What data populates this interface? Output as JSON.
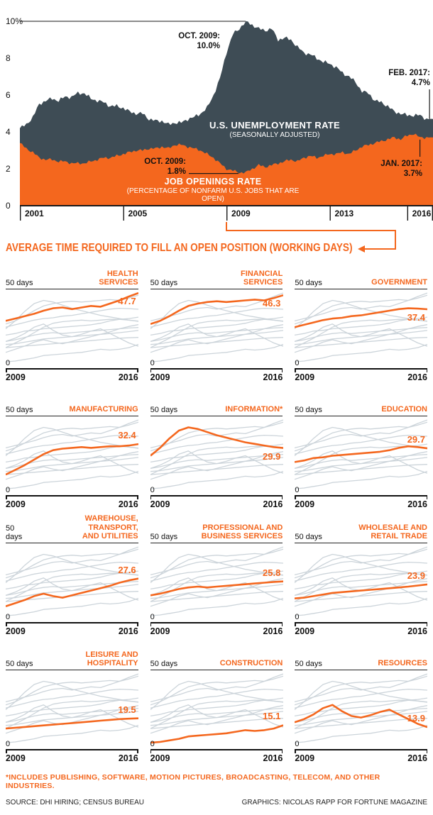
{
  "colors": {
    "orange": "#f4671e",
    "slate": "#3e4c55",
    "gray_line": "#ccd4da",
    "axis": "#1a1a1a"
  },
  "chart_data": [
    {
      "type": "area",
      "x_start": 2001,
      "x_end": 2017,
      "x_step": 0.25,
      "ylim": [
        0,
        10
      ],
      "grid": false,
      "y_ticks": [
        {
          "value": 10,
          "label": "10%"
        },
        {
          "value": 8,
          "label": "8"
        },
        {
          "value": 6,
          "label": "6"
        },
        {
          "value": 4,
          "label": "4"
        },
        {
          "value": 2,
          "label": "2"
        },
        {
          "value": 0,
          "label": "0"
        }
      ],
      "x_ticks": [
        {
          "value": 2001,
          "label": "2001"
        },
        {
          "value": 2005,
          "label": "2005"
        },
        {
          "value": 2009,
          "label": "2009"
        },
        {
          "value": 2013,
          "label": "2013"
        },
        {
          "value": 2016,
          "label": "2016"
        }
      ],
      "series": [
        {
          "name": "U.S. UNEMPLOYMENT RATE",
          "subtitle": "(SEASONALLY ADJUSTED)",
          "color": "slate",
          "values": [
            4.2,
            4.4,
            4.8,
            5.5,
            5.7,
            5.8,
            5.7,
            5.9,
            5.9,
            6.1,
            6.1,
            5.8,
            5.7,
            5.6,
            5.4,
            5.4,
            5.3,
            5.1,
            5.0,
            5.0,
            4.7,
            4.6,
            4.6,
            4.4,
            4.5,
            4.5,
            4.7,
            4.8,
            5.0,
            5.3,
            6.0,
            6.9,
            8.3,
            9.3,
            9.6,
            10.0,
            9.8,
            9.6,
            9.5,
            9.6,
            9.0,
            9.1,
            9.0,
            8.6,
            8.3,
            8.2,
            8.0,
            7.8,
            7.7,
            7.5,
            7.2,
            7.0,
            6.7,
            6.2,
            6.1,
            5.7,
            5.6,
            5.4,
            5.1,
            5.0,
            4.9,
            4.9,
            4.9,
            4.7,
            4.7
          ]
        },
        {
          "name": "JOB OPENINGS RATE",
          "subtitle": "(PERCENTAGE OF NONFARM U.S. JOBS THAT ARE OPEN)",
          "color": "orange",
          "values": [
            3.4,
            3.1,
            2.9,
            2.6,
            2.5,
            2.5,
            2.4,
            2.4,
            2.3,
            2.3,
            2.3,
            2.4,
            2.5,
            2.6,
            2.6,
            2.7,
            2.8,
            2.9,
            3.0,
            3.0,
            3.1,
            3.1,
            3.2,
            3.1,
            3.3,
            3.3,
            3.2,
            3.1,
            3.0,
            2.8,
            2.6,
            2.3,
            2.0,
            1.9,
            1.8,
            1.8,
            2.0,
            2.2,
            2.1,
            2.2,
            2.3,
            2.4,
            2.5,
            2.4,
            2.6,
            2.7,
            2.6,
            2.7,
            2.8,
            2.8,
            2.9,
            2.8,
            3.0,
            3.2,
            3.3,
            3.4,
            3.5,
            3.6,
            3.7,
            3.6,
            3.8,
            3.9,
            3.7,
            3.7,
            3.7
          ]
        }
      ],
      "annotations": {
        "peak": "OCT. 2009:\n10.0%",
        "end_unemployment": "FEB. 2017:\n4.7%",
        "low": "OCT. 2009:\n1.8%",
        "end_openings": "JAN. 2017:\n3.7%"
      }
    },
    {
      "type": "line",
      "title": "AVERAGE TIME REQUIRED TO FILL AN OPEN POSITION (WORKING DAYS)",
      "ylim": [
        0,
        50
      ],
      "x_start": 2009,
      "x_end": 2016,
      "y_top_label": "50 days",
      "y_bottom_label": "0",
      "x_left_label": "2009",
      "x_right_label": "2016",
      "panels": [
        {
          "title": "HEALTH\nSERVICES",
          "value_label": "47.7",
          "label_side": "below",
          "values": [
            30,
            31.5,
            33,
            34.5,
            36.5,
            38,
            38.5,
            37.5,
            38.5,
            39.5,
            39,
            41,
            43,
            45.5,
            47.7
          ]
        },
        {
          "title": "FINANCIAL\nSERVICES",
          "value_label": "46.3",
          "label_side": "below",
          "values": [
            28,
            30,
            33,
            36.5,
            39.5,
            41,
            42,
            42.5,
            42,
            42.5,
            43,
            43.5,
            43,
            44.5,
            46.3
          ]
        },
        {
          "title": "GOVERNMENT",
          "value_label": "37.4",
          "label_side": "below",
          "values": [
            26,
            27.5,
            29,
            30.5,
            31.5,
            32,
            33,
            33.5,
            34.5,
            35.5,
            36.5,
            37.5,
            38,
            37.8,
            37.4
          ]
        },
        {
          "title": "MANUFACTURING",
          "value_label": "32.4",
          "label_side": "above",
          "values": [
            13,
            16,
            19,
            22.5,
            26,
            28.5,
            29.5,
            30,
            30.5,
            30,
            30.5,
            31,
            31,
            31.5,
            32.4
          ]
        },
        {
          "title": "INFORMATION*",
          "value_label": "29.9",
          "label_side": "below",
          "values": [
            25,
            30,
            36,
            41,
            43,
            42,
            40,
            38,
            36.5,
            35,
            33.5,
            32.5,
            31.5,
            30.5,
            29.9
          ]
        },
        {
          "title": "EDUCATION",
          "value_label": "29.7",
          "label_side": "above",
          "values": [
            21,
            22,
            23.5,
            24,
            25,
            25.5,
            26,
            26.5,
            27,
            27.5,
            28.5,
            30,
            31,
            30.5,
            29.7
          ]
        },
        {
          "title": "WAREHOUSE, TRANSPORT,\nAND UTILITIES",
          "value_label": "27.6",
          "label_side": "above",
          "values": [
            10,
            12,
            14,
            16.5,
            18,
            16.5,
            15.5,
            17,
            18.5,
            20,
            21.5,
            23,
            25,
            26.5,
            27.6
          ]
        },
        {
          "title": "PROFESSIONAL AND\nBUSINESS SERVICES",
          "value_label": "25.8",
          "label_side": "above",
          "values": [
            17,
            18,
            19.5,
            21,
            22,
            22.5,
            22,
            22.5,
            23,
            23.5,
            24,
            24.5,
            25,
            25.5,
            25.8
          ]
        },
        {
          "title": "WHOLESALE AND\nRETAIL TRADE",
          "value_label": "23.9",
          "label_side": "above",
          "values": [
            15,
            15.5,
            16.5,
            17.5,
            18.5,
            19,
            19.5,
            20,
            20.5,
            21,
            21.5,
            22,
            22.5,
            23.2,
            23.9
          ]
        },
        {
          "title": "LEISURE AND\nHOSPITALITY",
          "value_label": "19.5",
          "label_side": "above",
          "values": [
            13,
            13.5,
            14,
            14.5,
            15,
            15.5,
            16,
            16.5,
            17,
            17.5,
            18,
            18.5,
            19,
            19.3,
            19.5
          ]
        },
        {
          "title": "CONSTRUCTION",
          "value_label": "15.1",
          "label_side": "above",
          "values": [
            4,
            4.5,
            5.5,
            6.5,
            8,
            8.5,
            9,
            9.5,
            10,
            11,
            12,
            11.5,
            12,
            13,
            15.1
          ]
        },
        {
          "title": "RESOURCES",
          "value_label": "13.9",
          "label_side": "above",
          "values": [
            17,
            19,
            22,
            26,
            28,
            24,
            21,
            20,
            21.5,
            23.5,
            25,
            22,
            19,
            16,
            13.9
          ]
        }
      ]
    }
  ],
  "footnote": "*INCLUDES PUBLISHING, SOFTWARE, MOTION PICTURES, BROADCASTING, TELECOM, AND OTHER INDUSTRIES.",
  "source": "SOURCE: DHI HIRING; CENSUS BUREAU",
  "credit": "GRAPHICS: NICOLAS RAPP FOR FORTUNE MAGAZINE"
}
